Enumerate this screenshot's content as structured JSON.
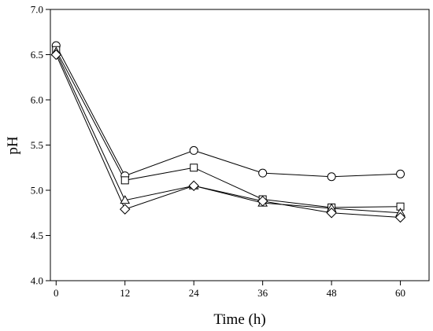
{
  "chart_data": {
    "type": "line",
    "title": "",
    "xlabel": "Time (h)",
    "ylabel": "pH",
    "x": [
      0,
      12,
      24,
      36,
      48,
      60
    ],
    "xticks": [
      "0",
      "12",
      "24",
      "36",
      "48",
      "60"
    ],
    "yticks": [
      "4.0",
      "4.5",
      "5.0",
      "5.5",
      "6.0",
      "6.5",
      "7.0"
    ],
    "xlim": [
      -1,
      65
    ],
    "ylim": [
      4.0,
      7.0
    ],
    "grid": false,
    "legend": "none",
    "series": [
      {
        "marker": "circle",
        "values": [
          6.6,
          5.16,
          5.44,
          5.19,
          5.15,
          5.18
        ]
      },
      {
        "marker": "square",
        "values": [
          6.55,
          5.11,
          5.25,
          4.9,
          4.81,
          4.82
        ]
      },
      {
        "marker": "triangle",
        "values": [
          6.53,
          4.89,
          5.05,
          4.86,
          4.8,
          4.75
        ]
      },
      {
        "marker": "diamond",
        "values": [
          6.5,
          4.79,
          5.05,
          4.88,
          4.75,
          4.7
        ]
      }
    ],
    "colors": {
      "line": "#000000",
      "marker_fill": "#ffffff"
    }
  }
}
